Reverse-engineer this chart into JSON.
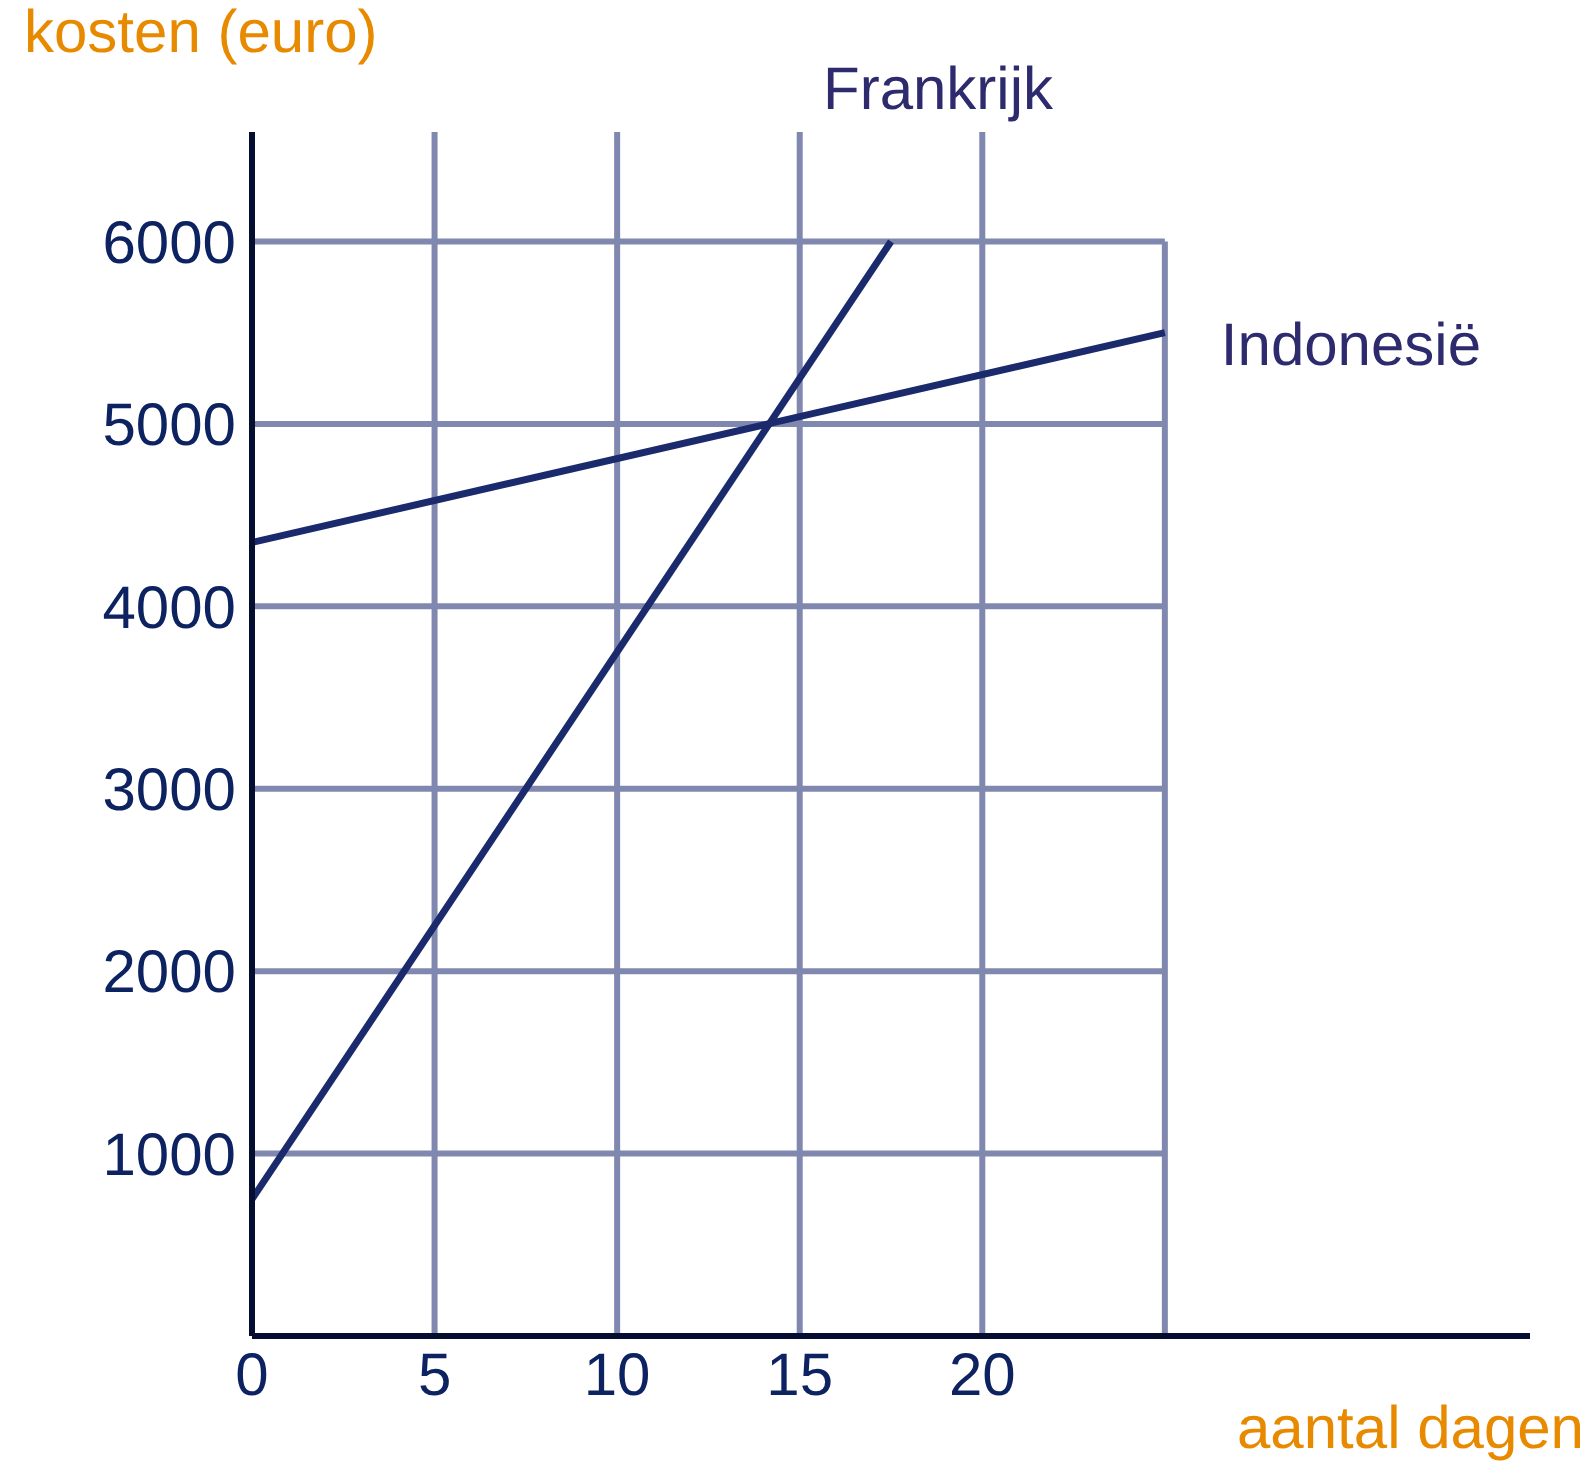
{
  "chart_data": {
    "type": "line",
    "xlabel": "aantal dagen",
    "ylabel": "kosten (euro)",
    "xlim": [
      0,
      35
    ],
    "ylim": [
      0,
      6600
    ],
    "xticks": [
      0,
      5,
      10,
      15,
      20,
      {
        "value": 25,
        "label": null
      }
    ],
    "yticks": [
      {
        "value": 0,
        "label": null
      },
      1000,
      2000,
      3000,
      4000,
      5000,
      6000
    ],
    "grid": true,
    "marker": "none",
    "line_style": "solid",
    "series": [
      {
        "name": "Frankrijk",
        "color": "#1a2a6c",
        "x": [
          0,
          17.5
        ],
        "values": [
          750,
          6000
        ]
      },
      {
        "name": "Indonesië",
        "color": "#1a2a6c",
        "x": [
          0,
          25
        ],
        "values": [
          4350,
          5500
        ]
      }
    ]
  }
}
